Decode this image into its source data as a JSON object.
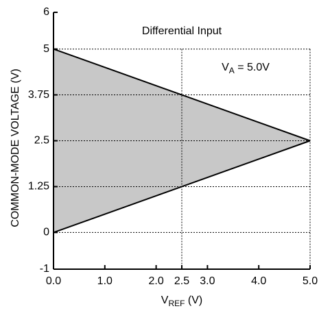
{
  "chart_data": {
    "type": "area",
    "annotations": [
      "Differential Input"
    ],
    "va_label": {
      "main": "V",
      "sub": "A",
      "rest": " = 5.0V"
    },
    "xlabel": {
      "main": "V",
      "sub": "REF",
      "rest": " (V)"
    },
    "ylabel": "COMMON-MODE VOLTAGE (V)",
    "x": [
      0,
      5
    ],
    "series": [
      {
        "color": "#000000",
        "values": [
          5,
          2.5
        ]
      },
      {
        "color": "#000000",
        "values": [
          0,
          2.5
        ]
      }
    ],
    "fill_color": "#c8c8c8",
    "xlim": [
      0,
      5
    ],
    "ylim": [
      -1,
      6
    ],
    "xticks": [
      {
        "value": 0,
        "label": "0.0"
      },
      {
        "value": 1,
        "label": "1.0"
      },
      {
        "value": 2,
        "label": "2.0"
      },
      2.5,
      {
        "value": 3,
        "label": "3.0"
      },
      {
        "value": 4,
        "label": "4.0"
      },
      {
        "value": 5,
        "label": "5.0"
      }
    ],
    "yticks": [
      -1,
      0,
      1.25,
      2.5,
      3.75,
      5,
      6
    ],
    "xgrid": [
      2.5,
      5
    ],
    "grid": true
  }
}
